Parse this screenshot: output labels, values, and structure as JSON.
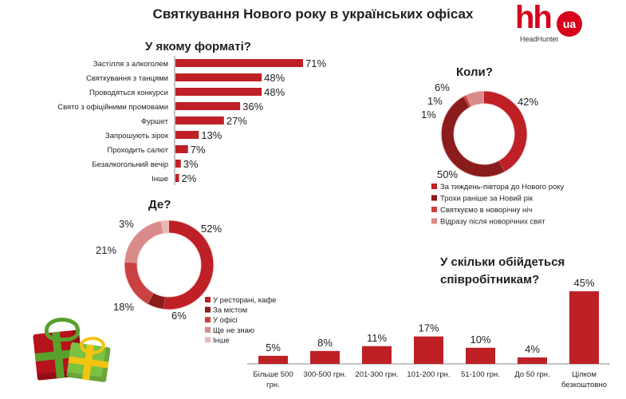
{
  "page": {
    "title": "Святкування Нового року в українських офісах"
  },
  "logo": {
    "hh": "hh",
    "ua": "ua",
    "sub": "HeadHunter"
  },
  "colors": {
    "primary": "#be2026",
    "dark": "#8b1c1c",
    "mid": "#c94141",
    "light": "#d98a8a",
    "lighter": "#e8b8b8"
  },
  "chart_data": [
    {
      "id": "format",
      "type": "bar",
      "orientation": "horizontal",
      "title": "У якому форматі?",
      "categories": [
        "Застілля з алкоголем",
        "Святкування з танцями",
        "Проводяться конкурси",
        "Свято з офіційними промовами",
        "Фуршет",
        "Запрошують зірок",
        "Проходить салют",
        "Безалкогольний вечір",
        "Інше"
      ],
      "values": [
        71,
        48,
        48,
        36,
        27,
        13,
        7,
        3,
        2
      ],
      "labels": [
        "71%",
        "48%",
        "48%",
        "36%",
        "27%",
        "13%",
        "7%",
        "3%",
        "2%"
      ],
      "unit": "%"
    },
    {
      "id": "when",
      "type": "pie",
      "variant": "doughnut",
      "title": "Коли?",
      "categories": [
        "За тиждень-півтора до Нового року",
        "Трохи раніше за Новий рік",
        "Святкуємо в новорічну ніч",
        "Відразу після новорічних свят"
      ],
      "values": [
        42,
        50,
        1,
        1,
        6
      ],
      "slice_categories": [
        0,
        1,
        2,
        3,
        3
      ],
      "labels": [
        "42%",
        "50%",
        "1%",
        "1%",
        "6%"
      ],
      "legend": "bottom-right"
    },
    {
      "id": "where",
      "type": "pie",
      "variant": "doughnut",
      "title": "Де?",
      "categories": [
        "У ресторані, кафе",
        "За містом",
        "У офісі",
        "Ще не знаю",
        "Інше"
      ],
      "values": [
        52,
        6,
        18,
        21,
        3
      ],
      "labels": [
        "52%",
        "6%",
        "18%",
        "21%",
        "3%"
      ],
      "legend": "right"
    },
    {
      "id": "cost",
      "type": "bar",
      "orientation": "vertical",
      "title": "У скільки обійдеться співробітникам?",
      "categories": [
        "Більше 500 грн.",
        "300-500 грн.",
        "201-300 грн.",
        "101-200 грн.",
        "51-100 грн.",
        "До 50 грн.",
        "Цілком безкоштовно"
      ],
      "category_lines": [
        [
          "Більше 500",
          "грн."
        ],
        [
          "300-500 грн."
        ],
        [
          "201-300 грн."
        ],
        [
          "101-200 грн."
        ],
        [
          "51-100 грн."
        ],
        [
          "До 50 грн."
        ],
        [
          "Цілком",
          "безкоштовно"
        ]
      ],
      "values": [
        5,
        8,
        11,
        17,
        10,
        4,
        45
      ],
      "labels": [
        "5%",
        "8%",
        "11%",
        "17%",
        "10%",
        "4%",
        "45%"
      ],
      "unit": "%"
    }
  ]
}
